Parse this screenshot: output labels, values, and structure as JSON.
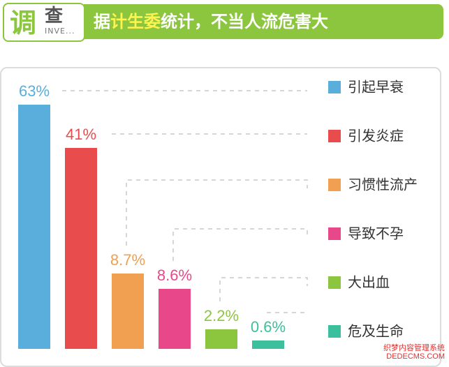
{
  "header": {
    "badge_main": "调",
    "badge_sub": "查",
    "badge_en": "INVE...",
    "title_prefix": "据",
    "title_highlight": "计生委",
    "title_suffix": "统计，不当人流危害大"
  },
  "colors": {
    "accent_green": "#8cc63f",
    "highlight_yellow": "#fff44f",
    "grid_dash": "#c8c8c8"
  },
  "chart_data": {
    "type": "bar",
    "categories": [
      "引起早衰",
      "引发炎症",
      "习惯性流产",
      "导致不孕",
      "大出血",
      "危及生命"
    ],
    "values": [
      63,
      41,
      8.7,
      8.6,
      2.2,
      0.6
    ],
    "data_labels": [
      "63%",
      "41%",
      "8.7%",
      "8.6%",
      "2.2%",
      "0.6%"
    ],
    "colors": [
      "#5aaedc",
      "#e84c4c",
      "#f0a050",
      "#e8488a",
      "#8cc63f",
      "#3cbf9c"
    ],
    "value_label_colors": [
      "#5aaedc",
      "#e84c4c",
      "#f0a050",
      "#e8488a",
      "#8cc63f",
      "#3cbf9c"
    ],
    "title": "",
    "xlabel": "",
    "ylabel": "",
    "legend": "right",
    "grid": false
  },
  "watermark": {
    "line1": "织梦内容管理系统",
    "line2": "DEDECMS.COM"
  }
}
